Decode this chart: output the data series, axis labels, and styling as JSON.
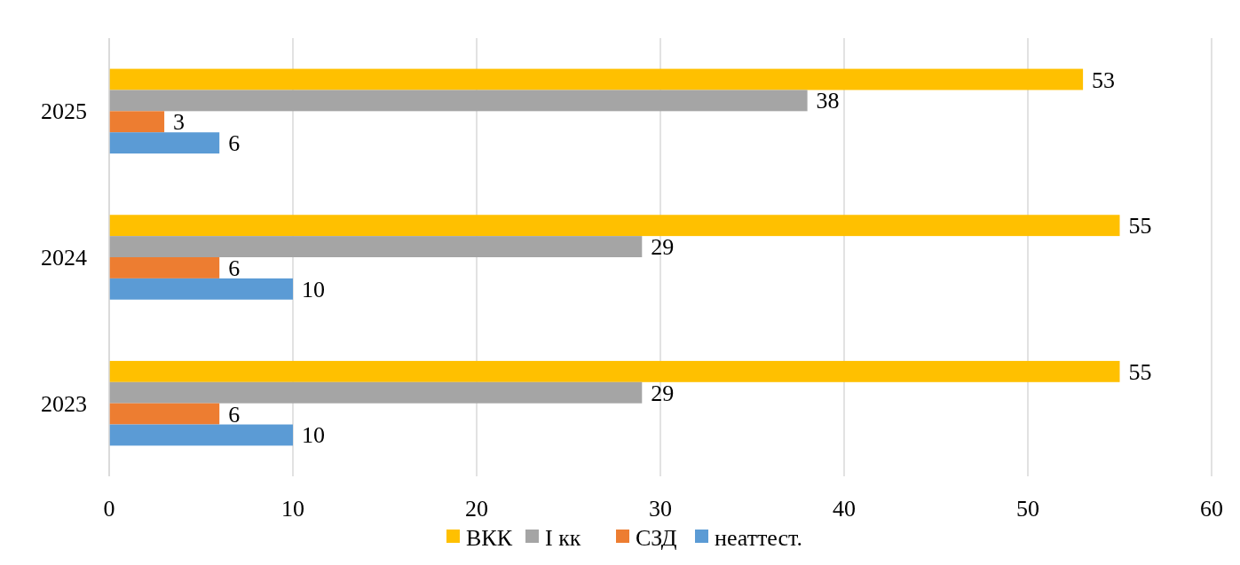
{
  "chart_data": {
    "type": "bar",
    "orientation": "horizontal",
    "categories": [
      "2025",
      "2024",
      "2023"
    ],
    "series": [
      {
        "name": "ВКК",
        "color": "#ffc000",
        "values": [
          53,
          55,
          55
        ]
      },
      {
        "name": "I кк",
        "color": "#a5a5a5",
        "values": [
          38,
          29,
          29
        ]
      },
      {
        "name": "СЗД",
        "color": "#ed7d31",
        "values": [
          3,
          6,
          6
        ]
      },
      {
        "name": "неаттест.",
        "color": "#5b9bd5",
        "values": [
          6,
          10,
          10
        ]
      }
    ],
    "xlim": [
      0,
      60
    ],
    "xticks": [
      0,
      10,
      20,
      30,
      40,
      50,
      60
    ],
    "grid": "x",
    "data_labels": true,
    "legend": "bottom"
  }
}
